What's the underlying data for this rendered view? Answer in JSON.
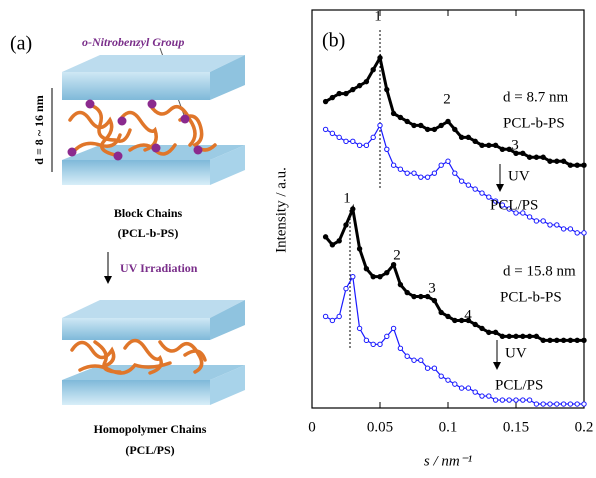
{
  "panel_a": {
    "label": "(a)",
    "group_label": "o-Nitrobenzyl Group",
    "thickness_label": "d = 8 ~ 16 nm",
    "top_caption": [
      "Block Chains",
      "(PCL-b-PS)"
    ],
    "arrow_label": "UV Irradiation",
    "bottom_caption": [
      "Homopolymer Chains",
      "(PCL/PS)"
    ]
  },
  "chart_data": {
    "type": "line",
    "panel_label": "(b)",
    "x_label": "s / nm⁻¹",
    "y_label": "Intensity / a.u.",
    "x": [
      0.01,
      0.015,
      0.02,
      0.025,
      0.03,
      0.035,
      0.04,
      0.045,
      0.05,
      0.055,
      0.06,
      0.065,
      0.07,
      0.075,
      0.08,
      0.085,
      0.09,
      0.095,
      0.1,
      0.105,
      0.11,
      0.115,
      0.12,
      0.125,
      0.13,
      0.135,
      0.14,
      0.145,
      0.15,
      0.155,
      0.16,
      0.165,
      0.17,
      0.175,
      0.18,
      0.185,
      0.19,
      0.195,
      0.2
    ],
    "xlim": [
      0,
      0.2
    ],
    "xticks": [
      0,
      0.05,
      0.1,
      0.15,
      0.2
    ],
    "ylim": [
      0,
      100
    ],
    "series": [
      {
        "color": "#000000",
        "marker": "filled",
        "values": [
          77,
          78,
          79,
          79,
          80,
          81,
          82,
          85,
          88,
          80,
          74,
          73,
          72,
          71,
          71,
          70,
          70,
          71,
          72,
          70,
          68,
          68,
          67,
          66,
          66,
          66,
          65,
          65,
          64,
          64,
          63,
          63,
          63,
          62,
          62,
          62,
          61,
          61,
          61
        ]
      },
      {
        "color": "#1a1aff",
        "marker": "open",
        "values": [
          70,
          69,
          68,
          67,
          67,
          66,
          66,
          68,
          71,
          65,
          61,
          60,
          59,
          59,
          58,
          58,
          59,
          61,
          62,
          59,
          57,
          56,
          55,
          54,
          53,
          52,
          51,
          50,
          49,
          49,
          48,
          47,
          47,
          46,
          46,
          45,
          45,
          44,
          44
        ]
      },
      {
        "color": "#000000",
        "marker": "filled",
        "values": [
          43,
          41,
          42,
          46,
          50,
          40,
          35,
          33,
          33,
          34,
          36,
          31,
          29,
          28,
          28,
          28,
          27,
          24,
          23,
          22,
          22,
          22,
          21,
          20,
          19,
          19,
          18,
          18,
          18,
          18,
          18,
          18,
          17,
          17,
          17,
          17,
          17,
          17,
          17
        ]
      },
      {
        "color": "#1a1aff",
        "marker": "open",
        "values": [
          23,
          22,
          23,
          30,
          33,
          20,
          17,
          16,
          16,
          18,
          20,
          15,
          13,
          12,
          12,
          10,
          10,
          8,
          7,
          6,
          5,
          5,
          4,
          3,
          3,
          2,
          2,
          2,
          2,
          2,
          2,
          1,
          1,
          1,
          1,
          1,
          1,
          1,
          1
        ]
      }
    ],
    "annotations": [
      "1",
      "2",
      "3",
      "d = 8.7 nm",
      "PCL-b-PS",
      "UV",
      "PCL/PS",
      "1",
      "2",
      "3",
      "4",
      "d = 15.8 nm",
      "PCL-b-PS",
      "UV",
      "PCL/PS"
    ]
  }
}
